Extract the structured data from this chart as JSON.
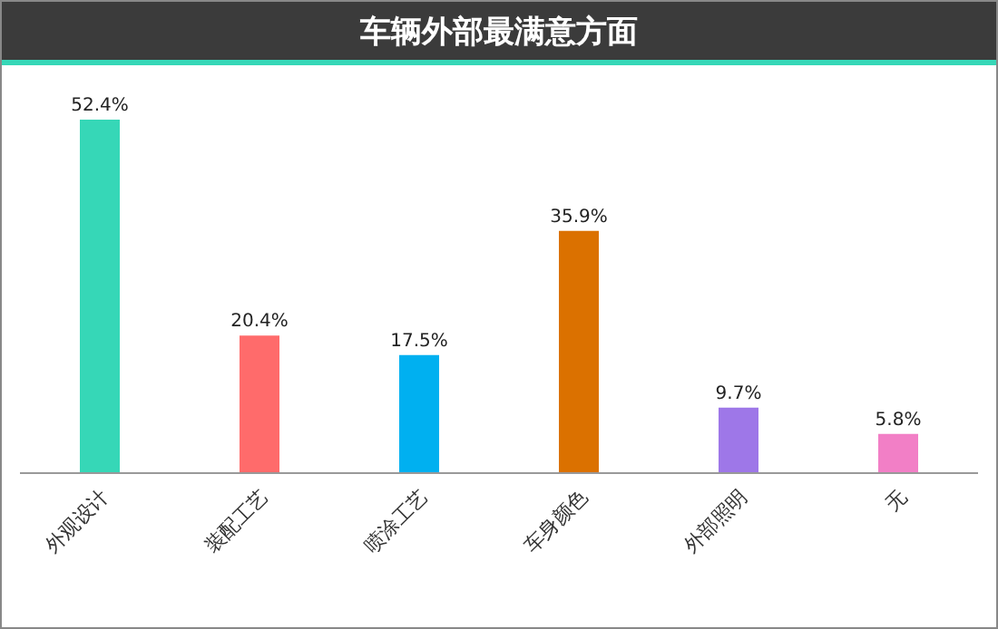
{
  "chart_data": {
    "type": "bar",
    "title": "车辆外部最满意方面",
    "categories": [
      "外观设计",
      "装配工艺",
      "喷涂工艺",
      "车身颜色",
      "外部照明",
      "无"
    ],
    "values": [
      52.4,
      20.4,
      17.5,
      35.9,
      9.7,
      5.8
    ],
    "colors": [
      "#36d7b7",
      "#ff6b6b",
      "#00b0f0",
      "#db7100",
      "#9e77e8",
      "#f27fc6"
    ],
    "value_labels": [
      "52.4%",
      "20.4%",
      "17.5%",
      "35.9%",
      "9.7%",
      "5.8%"
    ],
    "tick_labels": "x",
    "grid": false,
    "legend": false
  }
}
